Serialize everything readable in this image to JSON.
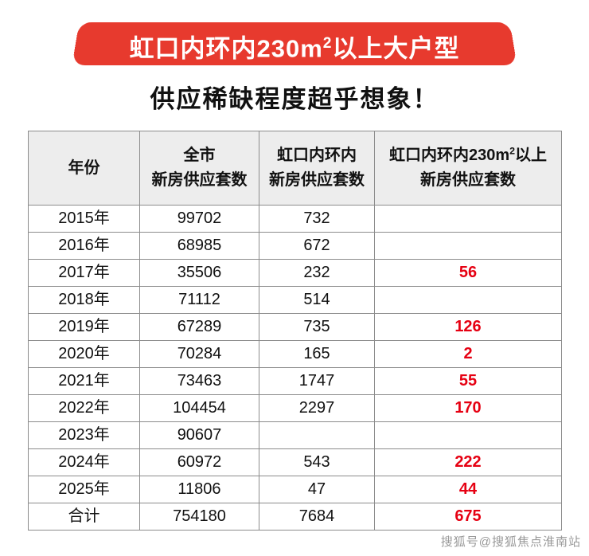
{
  "banner": {
    "title": {
      "prefix": "虹口内环内230m",
      "sup": "2",
      "suffix": "以上大户型"
    }
  },
  "subtitle": "供应稀缺程度超乎想象！",
  "table": {
    "headers": {
      "year": "年份",
      "city_line1": "全市",
      "city_line2": "新房供应套数",
      "hongkou_line1": "虹口内环内",
      "hongkou_line2": "新房供应套数",
      "large_line1_prefix": "虹口内环内230m",
      "large_line1_sup": "2",
      "large_line1_suffix": "以上",
      "large_line2": "新房供应套数"
    }
  },
  "watermark": "搜狐号@搜狐焦点淮南站",
  "colors": {
    "banner_red": "#e73a2e",
    "highlight_red": "#e60012",
    "header_bg": "#ededed",
    "border_gray": "#8c8c8c"
  },
  "chart_data": {
    "type": "table",
    "title": "虹口内环内230m²以上大户型 供应稀缺程度超乎想象！",
    "columns": [
      "年份",
      "全市新房供应套数",
      "虹口内环内新房供应套数",
      "虹口内环内230m²以上新房供应套数"
    ],
    "rows": [
      [
        "2015年",
        99702,
        732,
        null
      ],
      [
        "2016年",
        68985,
        672,
        null
      ],
      [
        "2017年",
        35506,
        232,
        56
      ],
      [
        "2018年",
        71112,
        514,
        null
      ],
      [
        "2019年",
        67289,
        735,
        126
      ],
      [
        "2020年",
        70284,
        165,
        2
      ],
      [
        "2021年",
        73463,
        1747,
        55
      ],
      [
        "2022年",
        104454,
        2297,
        170
      ],
      [
        "2023年",
        90607,
        null,
        null
      ],
      [
        "2024年",
        60972,
        543,
        222
      ],
      [
        "2025年",
        11806,
        47,
        44
      ],
      [
        "合计",
        754180,
        7684,
        675
      ]
    ]
  }
}
